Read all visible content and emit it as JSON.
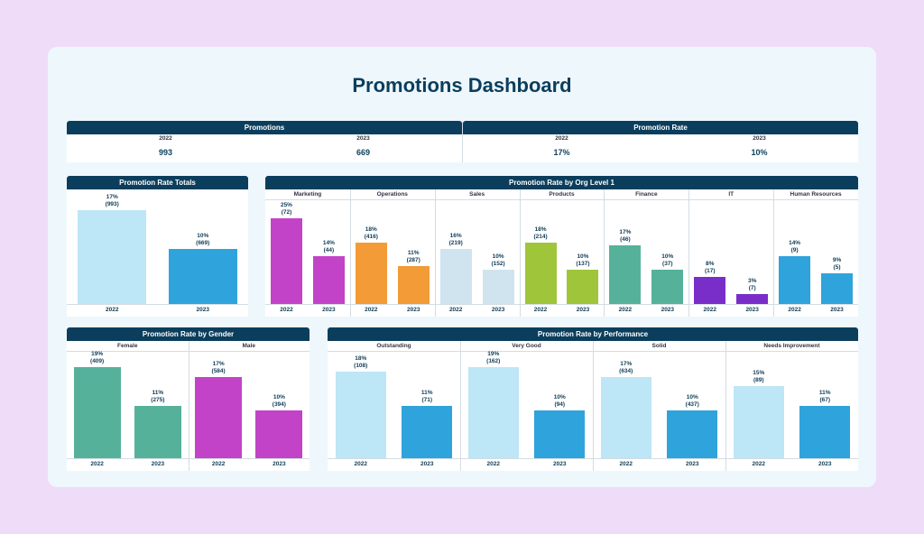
{
  "title": "Promotions Dashboard",
  "kpis": {
    "promotions": {
      "header": "Promotions",
      "y1": "2022",
      "v1": "993",
      "y2": "2023",
      "v2": "669"
    },
    "rate": {
      "header": "Promotion Rate",
      "y1": "2022",
      "v1": "17%",
      "y2": "2023",
      "v2": "10%"
    }
  },
  "colors": {
    "navy": "#0b3e5c",
    "light_blue": "#bde6f7",
    "blue": "#2fa3dc",
    "teal": "#56b19b",
    "magenta": "#c343c8",
    "orange": "#f29b37",
    "pale_blue": "#cfe4ee",
    "lime": "#9fc63a",
    "purple": "#7a2ec9"
  },
  "chart_data": [
    {
      "id": "totals",
      "type": "bar",
      "title": "Promotion Rate Totals",
      "ylim": [
        0,
        17
      ],
      "groups": [
        {
          "name": "",
          "colors": [
            "light_blue",
            "blue"
          ],
          "bars": [
            {
              "x": "2022",
              "value": 17,
              "pct": "17%",
              "count": "(993)"
            },
            {
              "x": "2023",
              "value": 10,
              "pct": "10%",
              "count": "(669)"
            }
          ]
        }
      ]
    },
    {
      "id": "org",
      "type": "bar",
      "title": "Promotion Rate by Org Level 1",
      "ylim": [
        0,
        25
      ],
      "groups": [
        {
          "name": "Marketing",
          "colors": [
            "magenta",
            "magenta"
          ],
          "bars": [
            {
              "x": "2022",
              "value": 25,
              "pct": "25%",
              "count": "(72)"
            },
            {
              "x": "2023",
              "value": 14,
              "pct": "14%",
              "count": "(44)"
            }
          ]
        },
        {
          "name": "Operations",
          "colors": [
            "orange",
            "orange"
          ],
          "bars": [
            {
              "x": "2022",
              "value": 18,
              "pct": "18%",
              "count": "(416)"
            },
            {
              "x": "2023",
              "value": 11,
              "pct": "11%",
              "count": "(287)"
            }
          ]
        },
        {
          "name": "Sales",
          "colors": [
            "pale_blue",
            "pale_blue"
          ],
          "bars": [
            {
              "x": "2022",
              "value": 16,
              "pct": "16%",
              "count": "(219)"
            },
            {
              "x": "2023",
              "value": 10,
              "pct": "10%",
              "count": "(152)"
            }
          ]
        },
        {
          "name": "Products",
          "colors": [
            "lime",
            "lime"
          ],
          "bars": [
            {
              "x": "2022",
              "value": 18,
              "pct": "18%",
              "count": "(214)"
            },
            {
              "x": "2023",
              "value": 10,
              "pct": "10%",
              "count": "(137)"
            }
          ]
        },
        {
          "name": "Finance",
          "colors": [
            "teal",
            "teal"
          ],
          "bars": [
            {
              "x": "2022",
              "value": 17,
              "pct": "17%",
              "count": "(46)"
            },
            {
              "x": "2023",
              "value": 10,
              "pct": "10%",
              "count": "(37)"
            }
          ]
        },
        {
          "name": "IT",
          "colors": [
            "purple",
            "purple"
          ],
          "bars": [
            {
              "x": "2022",
              "value": 8,
              "pct": "8%",
              "count": "(17)"
            },
            {
              "x": "2023",
              "value": 3,
              "pct": "3%",
              "count": "(7)"
            }
          ]
        },
        {
          "name": "Human Resources",
          "colors": [
            "blue",
            "blue"
          ],
          "bars": [
            {
              "x": "2022",
              "value": 14,
              "pct": "14%",
              "count": "(9)"
            },
            {
              "x": "2023",
              "value": 9,
              "pct": "9%",
              "count": "(5)"
            }
          ]
        }
      ]
    },
    {
      "id": "gender",
      "type": "bar",
      "title": "Promotion Rate by Gender",
      "ylim": [
        0,
        19
      ],
      "groups": [
        {
          "name": "Female",
          "colors": [
            "teal",
            "teal"
          ],
          "bars": [
            {
              "x": "2022",
              "value": 19,
              "pct": "19%",
              "count": "(409)"
            },
            {
              "x": "2023",
              "value": 11,
              "pct": "11%",
              "count": "(275)"
            }
          ]
        },
        {
          "name": "Male",
          "colors": [
            "magenta",
            "magenta"
          ],
          "bars": [
            {
              "x": "2022",
              "value": 17,
              "pct": "17%",
              "count": "(584)"
            },
            {
              "x": "2023",
              "value": 10,
              "pct": "10%",
              "count": "(394)"
            }
          ]
        }
      ]
    },
    {
      "id": "perf",
      "type": "bar",
      "title": "Promotion Rate by Performance",
      "ylim": [
        0,
        19
      ],
      "groups": [
        {
          "name": "Outstanding",
          "colors": [
            "light_blue",
            "blue"
          ],
          "bars": [
            {
              "x": "2022",
              "value": 18,
              "pct": "18%",
              "count": "(108)"
            },
            {
              "x": "2023",
              "value": 11,
              "pct": "11%",
              "count": "(71)"
            }
          ]
        },
        {
          "name": "Very Good",
          "colors": [
            "light_blue",
            "blue"
          ],
          "bars": [
            {
              "x": "2022",
              "value": 19,
              "pct": "19%",
              "count": "(162)"
            },
            {
              "x": "2023",
              "value": 10,
              "pct": "10%",
              "count": "(94)"
            }
          ]
        },
        {
          "name": "Solid",
          "colors": [
            "light_blue",
            "blue"
          ],
          "bars": [
            {
              "x": "2022",
              "value": 17,
              "pct": "17%",
              "count": "(634)"
            },
            {
              "x": "2023",
              "value": 10,
              "pct": "10%",
              "count": "(437)"
            }
          ]
        },
        {
          "name": "Needs Improvement",
          "colors": [
            "light_blue",
            "blue"
          ],
          "bars": [
            {
              "x": "2022",
              "value": 15,
              "pct": "15%",
              "count": "(89)"
            },
            {
              "x": "2023",
              "value": 11,
              "pct": "11%",
              "count": "(67)"
            }
          ]
        }
      ]
    }
  ]
}
